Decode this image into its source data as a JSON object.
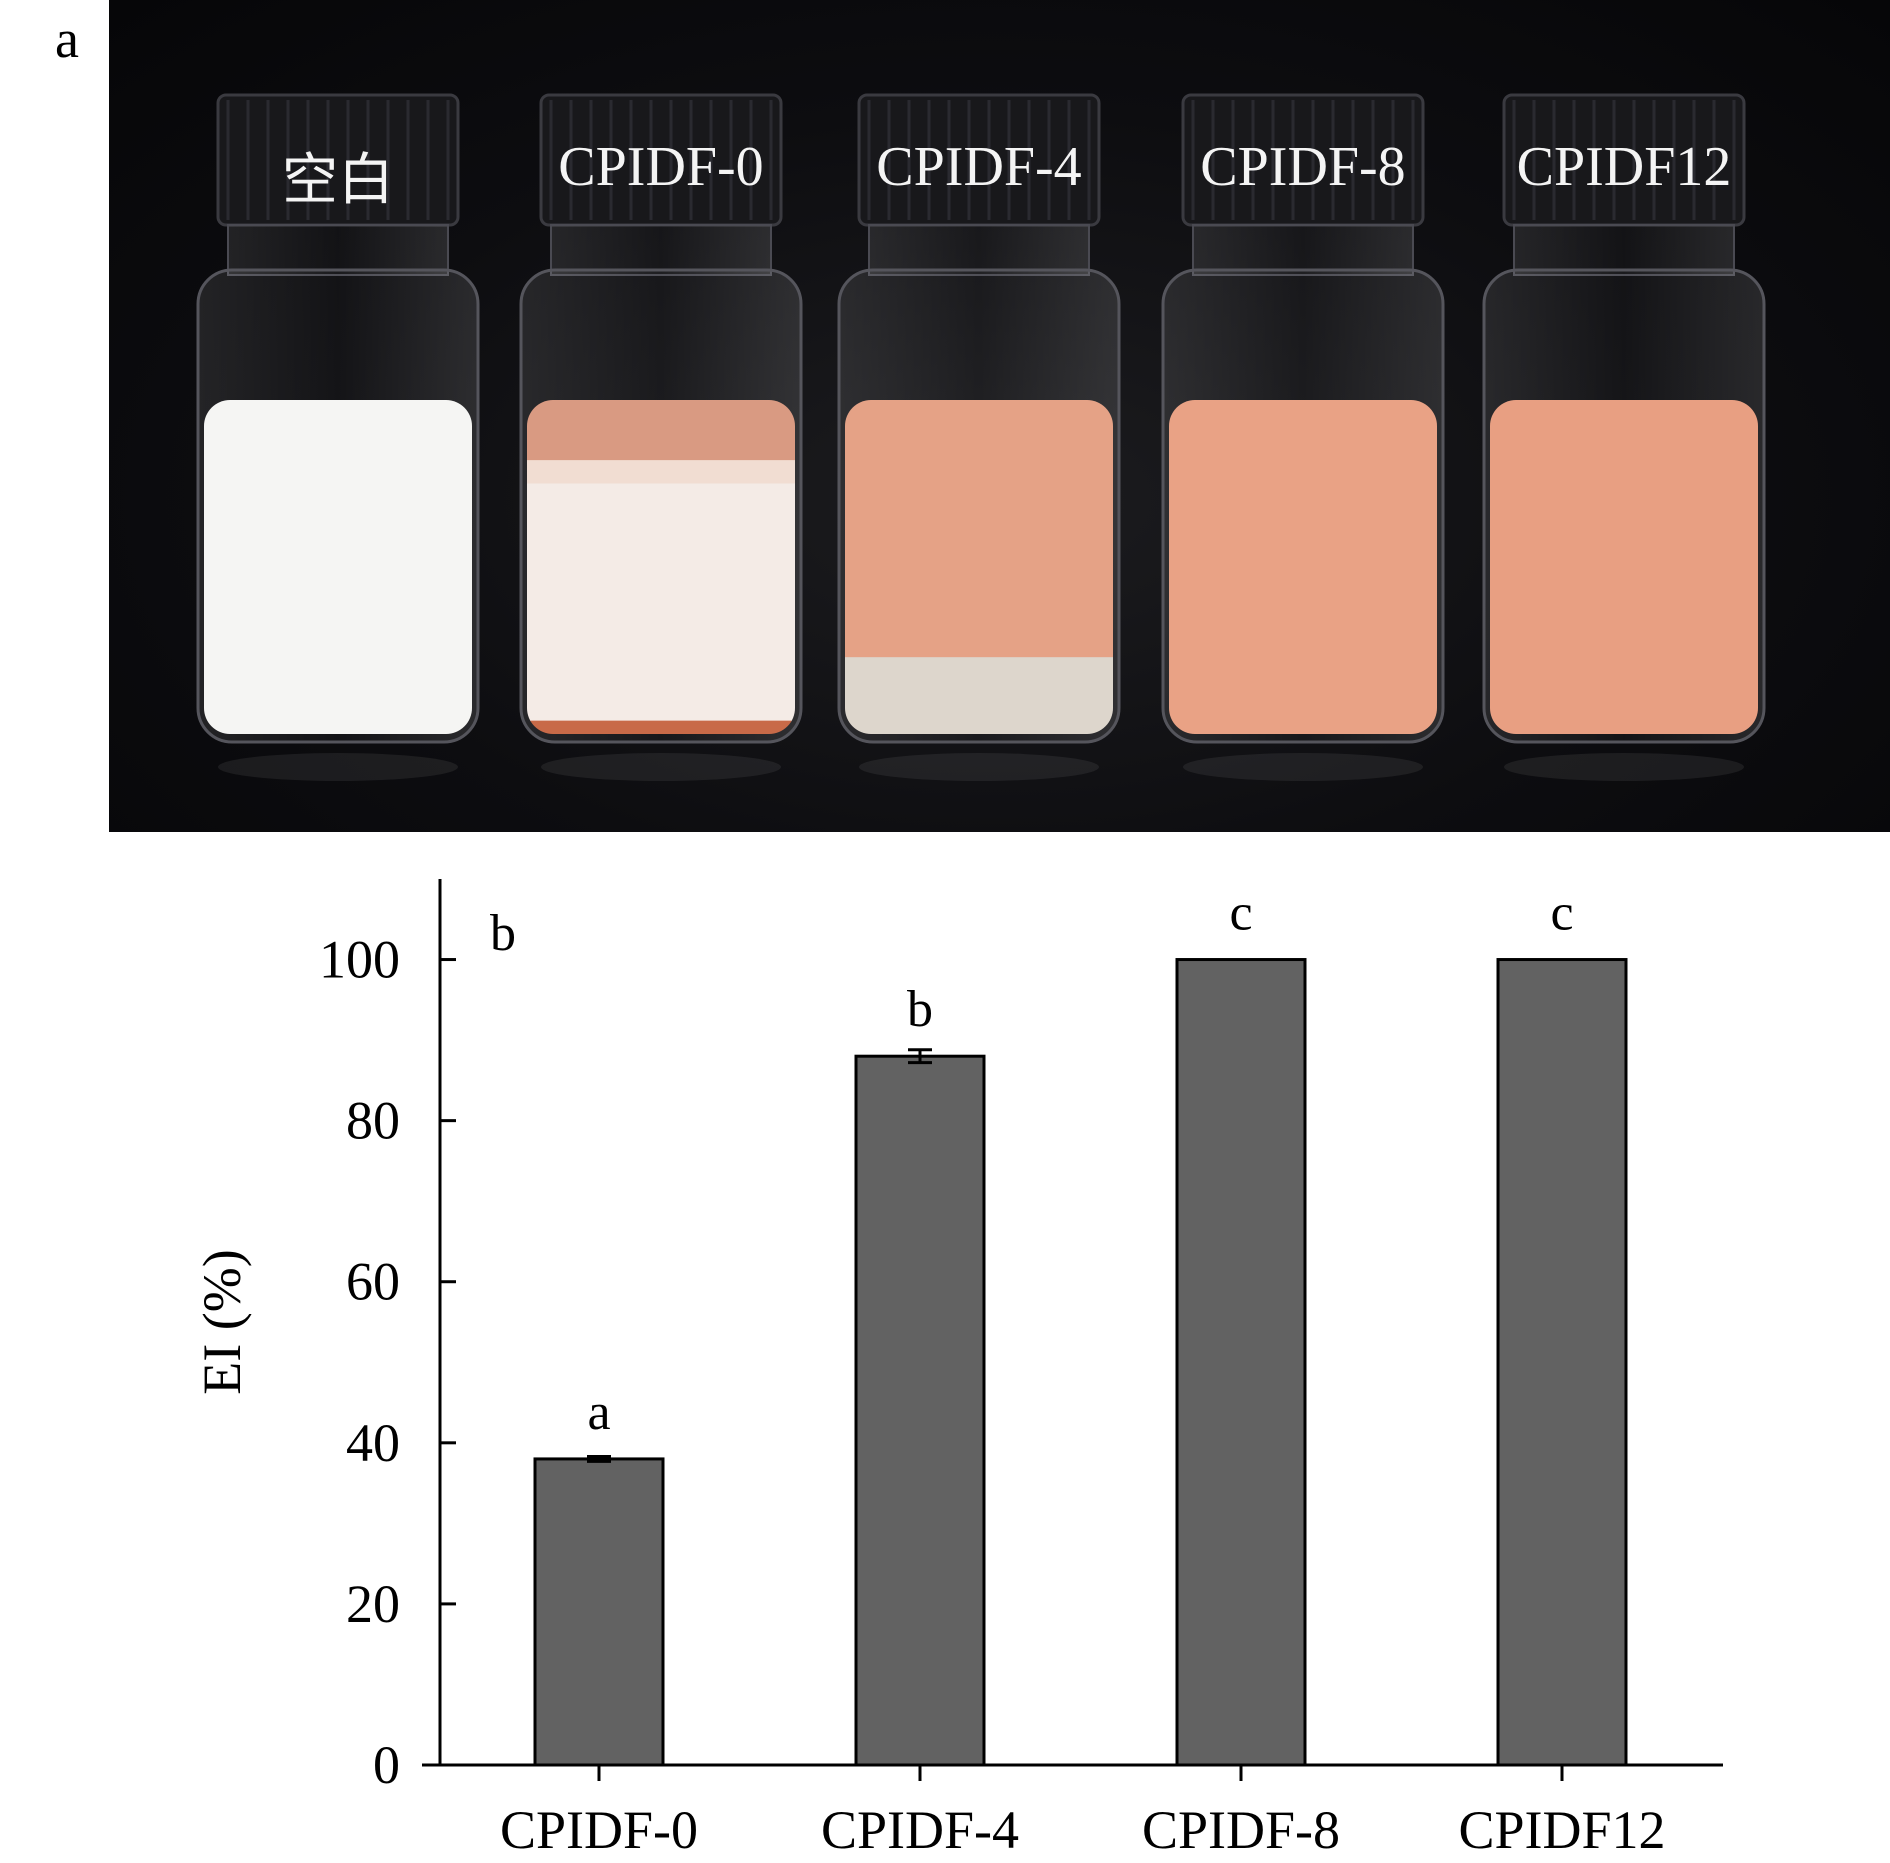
{
  "panel_a": {
    "label": "a",
    "vials": [
      {
        "label": "空白",
        "layers": [
          {
            "from": 0.0,
            "to": 1.0,
            "color": "#f5f5f3"
          }
        ]
      },
      {
        "label": "CPIDF-0",
        "layers": [
          {
            "from": 0.0,
            "to": 0.18,
            "color": "#d99a82"
          },
          {
            "from": 0.18,
            "to": 0.25,
            "color": "#f1ddd2"
          },
          {
            "from": 0.25,
            "to": 0.96,
            "color": "#f4ebe6"
          },
          {
            "from": 0.96,
            "to": 1.0,
            "color": "#c86a48"
          }
        ]
      },
      {
        "label": "CPIDF-4",
        "layers": [
          {
            "from": 0.0,
            "to": 0.77,
            "color": "#e5a286"
          },
          {
            "from": 0.77,
            "to": 1.0,
            "color": "#ddd6cc"
          }
        ]
      },
      {
        "label": "CPIDF-8",
        "layers": [
          {
            "from": 0.0,
            "to": 1.0,
            "color": "#e9a285"
          }
        ]
      },
      {
        "label": "CPIDF12",
        "layers": [
          {
            "from": 0.0,
            "to": 1.0,
            "color": "#e89f82"
          }
        ]
      }
    ]
  },
  "chart_data": {
    "type": "bar",
    "panel_label": "b",
    "title": "",
    "xlabel": "",
    "ylabel": "EI (%)",
    "ylim": [
      0,
      110
    ],
    "yticks": [
      0,
      20,
      40,
      60,
      80,
      100
    ],
    "categories": [
      "CPIDF-0",
      "CPIDF-4",
      "CPIDF-8",
      "CPIDF12"
    ],
    "values": [
      38,
      88,
      100,
      100
    ],
    "errors": [
      0.3,
      0.8,
      0,
      0
    ],
    "significance_letters": [
      "a",
      "b",
      "c",
      "c"
    ],
    "bar_color": "#626262"
  }
}
